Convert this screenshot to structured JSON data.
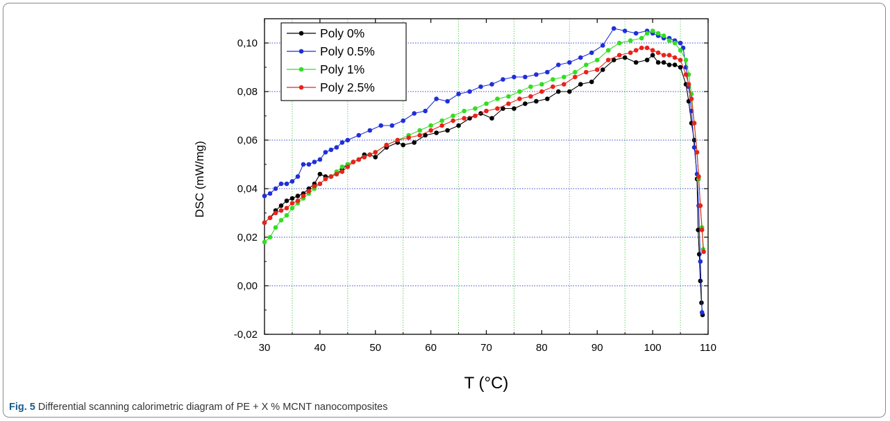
{
  "caption": {
    "label": "Fig. 5",
    "text": "Differential scanning calorimetric diagram of PE + X % MCNT nanocomposites"
  },
  "chart_data": {
    "type": "line",
    "xlabel": "T (°C)",
    "ylabel": "DSC (mW/mg)",
    "xlim": [
      30,
      110
    ],
    "ylim": [
      -0.02,
      0.11
    ],
    "x_ticks": [
      "30",
      "40",
      "50",
      "60",
      "70",
      "80",
      "90",
      "100",
      "110"
    ],
    "y_ticks": [
      "-0,02",
      "0,00",
      "0,02",
      "0,04",
      "0,06",
      "0,08",
      "0,10"
    ],
    "x_grid": [
      35,
      45,
      55,
      65,
      75,
      85,
      95,
      105
    ],
    "y_grid": [
      0.0,
      0.02,
      0.04,
      0.06,
      0.08,
      0.1
    ],
    "legend_position": "top-left",
    "series": [
      {
        "name": "Poly 0%",
        "color": "#000000",
        "x": [
          30,
          31,
          32,
          33,
          34,
          35,
          36,
          37,
          38,
          39,
          40,
          41,
          42,
          43,
          44,
          45,
          46,
          47,
          48,
          49,
          50,
          52,
          54,
          55,
          57,
          59,
          61,
          63,
          65,
          67,
          69,
          71,
          73,
          75,
          77,
          79,
          81,
          83,
          85,
          87,
          89,
          91,
          93,
          95,
          97,
          99,
          100,
          101,
          102,
          103,
          104,
          105,
          106,
          106.5,
          107,
          107.5,
          108,
          108.2,
          108.4,
          108.6,
          108.8,
          109
        ],
        "y": [
          0.026,
          0.028,
          0.031,
          0.033,
          0.035,
          0.036,
          0.037,
          0.038,
          0.04,
          0.042,
          0.046,
          0.045,
          0.045,
          0.046,
          0.048,
          0.05,
          0.051,
          0.052,
          0.054,
          0.054,
          0.053,
          0.057,
          0.059,
          0.058,
          0.059,
          0.062,
          0.063,
          0.064,
          0.066,
          0.069,
          0.071,
          0.069,
          0.073,
          0.073,
          0.075,
          0.076,
          0.077,
          0.08,
          0.08,
          0.083,
          0.084,
          0.089,
          0.093,
          0.094,
          0.092,
          0.093,
          0.095,
          0.092,
          0.092,
          0.091,
          0.091,
          0.09,
          0.083,
          0.076,
          0.067,
          0.06,
          0.044,
          0.023,
          0.013,
          0.002,
          -0.007,
          -0.012
        ]
      },
      {
        "name": "Poly 0.5%",
        "color": "#1f2fd8",
        "x": [
          30,
          31,
          32,
          33,
          34,
          35,
          36,
          37,
          38,
          39,
          40,
          41,
          42,
          43,
          44,
          45,
          47,
          49,
          51,
          53,
          55,
          57,
          59,
          61,
          63,
          65,
          67,
          69,
          71,
          73,
          75,
          77,
          79,
          81,
          83,
          85,
          87,
          89,
          91,
          93,
          95,
          97,
          99,
          100,
          101,
          102,
          103,
          104,
          105,
          105.5,
          106,
          106.5,
          107,
          107.5,
          108,
          108.3,
          108.6,
          108.9
        ],
        "y": [
          0.037,
          0.038,
          0.04,
          0.042,
          0.042,
          0.043,
          0.045,
          0.05,
          0.05,
          0.051,
          0.052,
          0.055,
          0.056,
          0.057,
          0.059,
          0.06,
          0.062,
          0.064,
          0.066,
          0.066,
          0.068,
          0.071,
          0.072,
          0.077,
          0.076,
          0.079,
          0.08,
          0.082,
          0.083,
          0.085,
          0.086,
          0.086,
          0.087,
          0.088,
          0.091,
          0.092,
          0.094,
          0.096,
          0.099,
          0.106,
          0.105,
          0.104,
          0.105,
          0.104,
          0.103,
          0.102,
          0.102,
          0.101,
          0.1,
          0.098,
          0.09,
          0.082,
          0.072,
          0.057,
          0.046,
          0.033,
          0.01,
          -0.011
        ]
      },
      {
        "name": "Poly 1%",
        "color": "#33dd22",
        "x": [
          30,
          31,
          32,
          33,
          34,
          35,
          36,
          37,
          38,
          39,
          40,
          41,
          42,
          43,
          44,
          45,
          46,
          47,
          48,
          49,
          50,
          52,
          54,
          56,
          58,
          60,
          62,
          64,
          66,
          68,
          70,
          72,
          74,
          76,
          78,
          80,
          82,
          84,
          86,
          88,
          90,
          92,
          94,
          96,
          98,
          99,
          100,
          101,
          102,
          103,
          104,
          105,
          106,
          106.5,
          107,
          107.5,
          108,
          108.3,
          108.6,
          108.9,
          109.1
        ],
        "y": [
          0.018,
          0.02,
          0.024,
          0.027,
          0.029,
          0.032,
          0.034,
          0.036,
          0.038,
          0.04,
          0.042,
          0.044,
          0.045,
          0.047,
          0.049,
          0.05,
          0.051,
          0.052,
          0.053,
          0.054,
          0.055,
          0.058,
          0.06,
          0.062,
          0.064,
          0.066,
          0.068,
          0.07,
          0.072,
          0.073,
          0.075,
          0.077,
          0.078,
          0.08,
          0.082,
          0.083,
          0.085,
          0.086,
          0.088,
          0.091,
          0.093,
          0.097,
          0.1,
          0.101,
          0.102,
          0.104,
          0.105,
          0.104,
          0.103,
          0.101,
          0.1,
          0.097,
          0.093,
          0.087,
          0.079,
          0.067,
          0.055,
          0.044,
          0.033,
          0.024,
          0.015
        ]
      },
      {
        "name": "Poly 2.5%",
        "color": "#e8231c",
        "x": [
          30,
          31,
          32,
          33,
          34,
          35,
          36,
          37,
          38,
          39,
          40,
          41,
          42,
          43,
          44,
          45,
          46,
          47,
          48,
          49,
          50,
          52,
          54,
          56,
          58,
          60,
          62,
          64,
          66,
          68,
          70,
          72,
          74,
          76,
          78,
          80,
          82,
          84,
          86,
          88,
          90,
          92,
          94,
          96,
          97,
          98,
          99,
          100,
          101,
          102,
          103,
          104,
          105,
          106,
          106.5,
          107,
          107.5,
          108,
          108.3,
          108.6,
          108.9,
          109.2
        ],
        "y": [
          0.026,
          0.028,
          0.03,
          0.031,
          0.032,
          0.034,
          0.035,
          0.037,
          0.039,
          0.041,
          0.042,
          0.044,
          0.045,
          0.046,
          0.047,
          0.049,
          0.051,
          0.052,
          0.053,
          0.054,
          0.055,
          0.058,
          0.06,
          0.061,
          0.062,
          0.064,
          0.066,
          0.068,
          0.069,
          0.07,
          0.072,
          0.073,
          0.075,
          0.077,
          0.078,
          0.08,
          0.082,
          0.083,
          0.086,
          0.088,
          0.089,
          0.093,
          0.095,
          0.096,
          0.097,
          0.098,
          0.098,
          0.097,
          0.096,
          0.095,
          0.095,
          0.094,
          0.093,
          0.087,
          0.083,
          0.077,
          0.067,
          0.055,
          0.045,
          0.033,
          0.023,
          0.014
        ]
      }
    ]
  }
}
